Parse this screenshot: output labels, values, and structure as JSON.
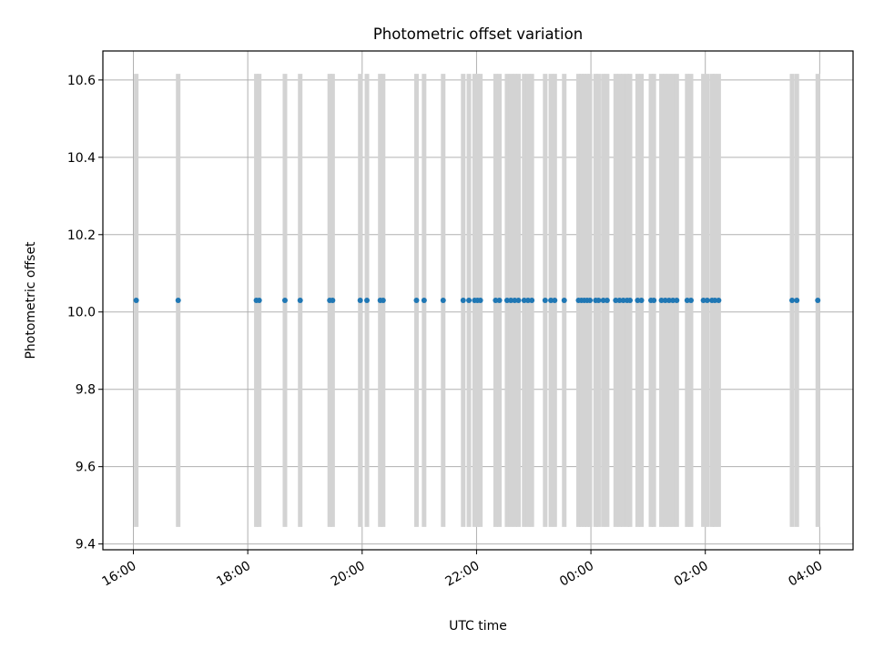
{
  "chart_data": {
    "type": "scatter",
    "title": "Photometric offset variation",
    "xlabel": "UTC time",
    "ylabel": "Photometric offset",
    "xlim": [
      "2024-01-01T15:28",
      "2024-01-02T04:35"
    ],
    "ylim": [
      9.385,
      10.675
    ],
    "xticks": [
      {
        "t": "2024-01-01T16:00",
        "label": "16:00"
      },
      {
        "t": "2024-01-01T18:00",
        "label": "18:00"
      },
      {
        "t": "2024-01-01T20:00",
        "label": "20:00"
      },
      {
        "t": "2024-01-01T22:00",
        "label": "22:00"
      },
      {
        "t": "2024-01-02T00:00",
        "label": "00:00"
      },
      {
        "t": "2024-01-02T02:00",
        "label": "02:00"
      },
      {
        "t": "2024-01-02T04:00",
        "label": "04:00"
      }
    ],
    "yticks": [
      {
        "v": 9.4,
        "label": "9.4"
      },
      {
        "v": 9.6,
        "label": "9.6"
      },
      {
        "v": 9.8,
        "label": "9.8"
      },
      {
        "v": 10.0,
        "label": "10.0"
      },
      {
        "v": 10.2,
        "label": "10.2"
      },
      {
        "v": 10.4,
        "label": "10.4"
      },
      {
        "v": 10.6,
        "label": "10.6"
      }
    ],
    "grid": true,
    "error": 0.586,
    "colors": {
      "points": "#1f77b4",
      "errorbars": "#d3d3d3",
      "grid": "#b0b0b0"
    },
    "series": [
      {
        "y": 10.03,
        "x": [
          "2024-01-01T16:03",
          "2024-01-01T16:47",
          "2024-01-01T18:09",
          "2024-01-01T18:12",
          "2024-01-01T18:39",
          "2024-01-01T18:55",
          "2024-01-01T19:26",
          "2024-01-01T19:29",
          "2024-01-01T19:58",
          "2024-01-01T20:05",
          "2024-01-01T20:19",
          "2024-01-01T20:22",
          "2024-01-01T20:57",
          "2024-01-01T21:05",
          "2024-01-01T21:25",
          "2024-01-01T21:46",
          "2024-01-01T21:52",
          "2024-01-01T21:58",
          "2024-01-01T22:01",
          "2024-01-01T22:04",
          "2024-01-01T22:20",
          "2024-01-01T22:24",
          "2024-01-01T22:32",
          "2024-01-01T22:36",
          "2024-01-01T22:40",
          "2024-01-01T22:44",
          "2024-01-01T22:50",
          "2024-01-01T22:54",
          "2024-01-01T22:58",
          "2024-01-01T23:12",
          "2024-01-01T23:18",
          "2024-01-01T23:22",
          "2024-01-01T23:32",
          "2024-01-01T23:47",
          "2024-01-01T23:50",
          "2024-01-01T23:53",
          "2024-01-01T23:56",
          "2024-01-01T23:59",
          "2024-01-02T00:05",
          "2024-01-02T00:08",
          "2024-01-02T00:13",
          "2024-01-02T00:17",
          "2024-01-02T00:26",
          "2024-01-02T00:30",
          "2024-01-02T00:34",
          "2024-01-02T00:38",
          "2024-01-02T00:41",
          "2024-01-02T00:49",
          "2024-01-02T00:53",
          "2024-01-02T01:03",
          "2024-01-02T01:06",
          "2024-01-02T01:14",
          "2024-01-02T01:18",
          "2024-01-02T01:22",
          "2024-01-02T01:26",
          "2024-01-02T01:30",
          "2024-01-02T01:41",
          "2024-01-02T01:45",
          "2024-01-02T01:58",
          "2024-01-02T02:02",
          "2024-01-02T02:07",
          "2024-01-02T02:10",
          "2024-01-02T02:14",
          "2024-01-02T03:31",
          "2024-01-02T03:36",
          "2024-01-02T03:58"
        ]
      }
    ]
  }
}
